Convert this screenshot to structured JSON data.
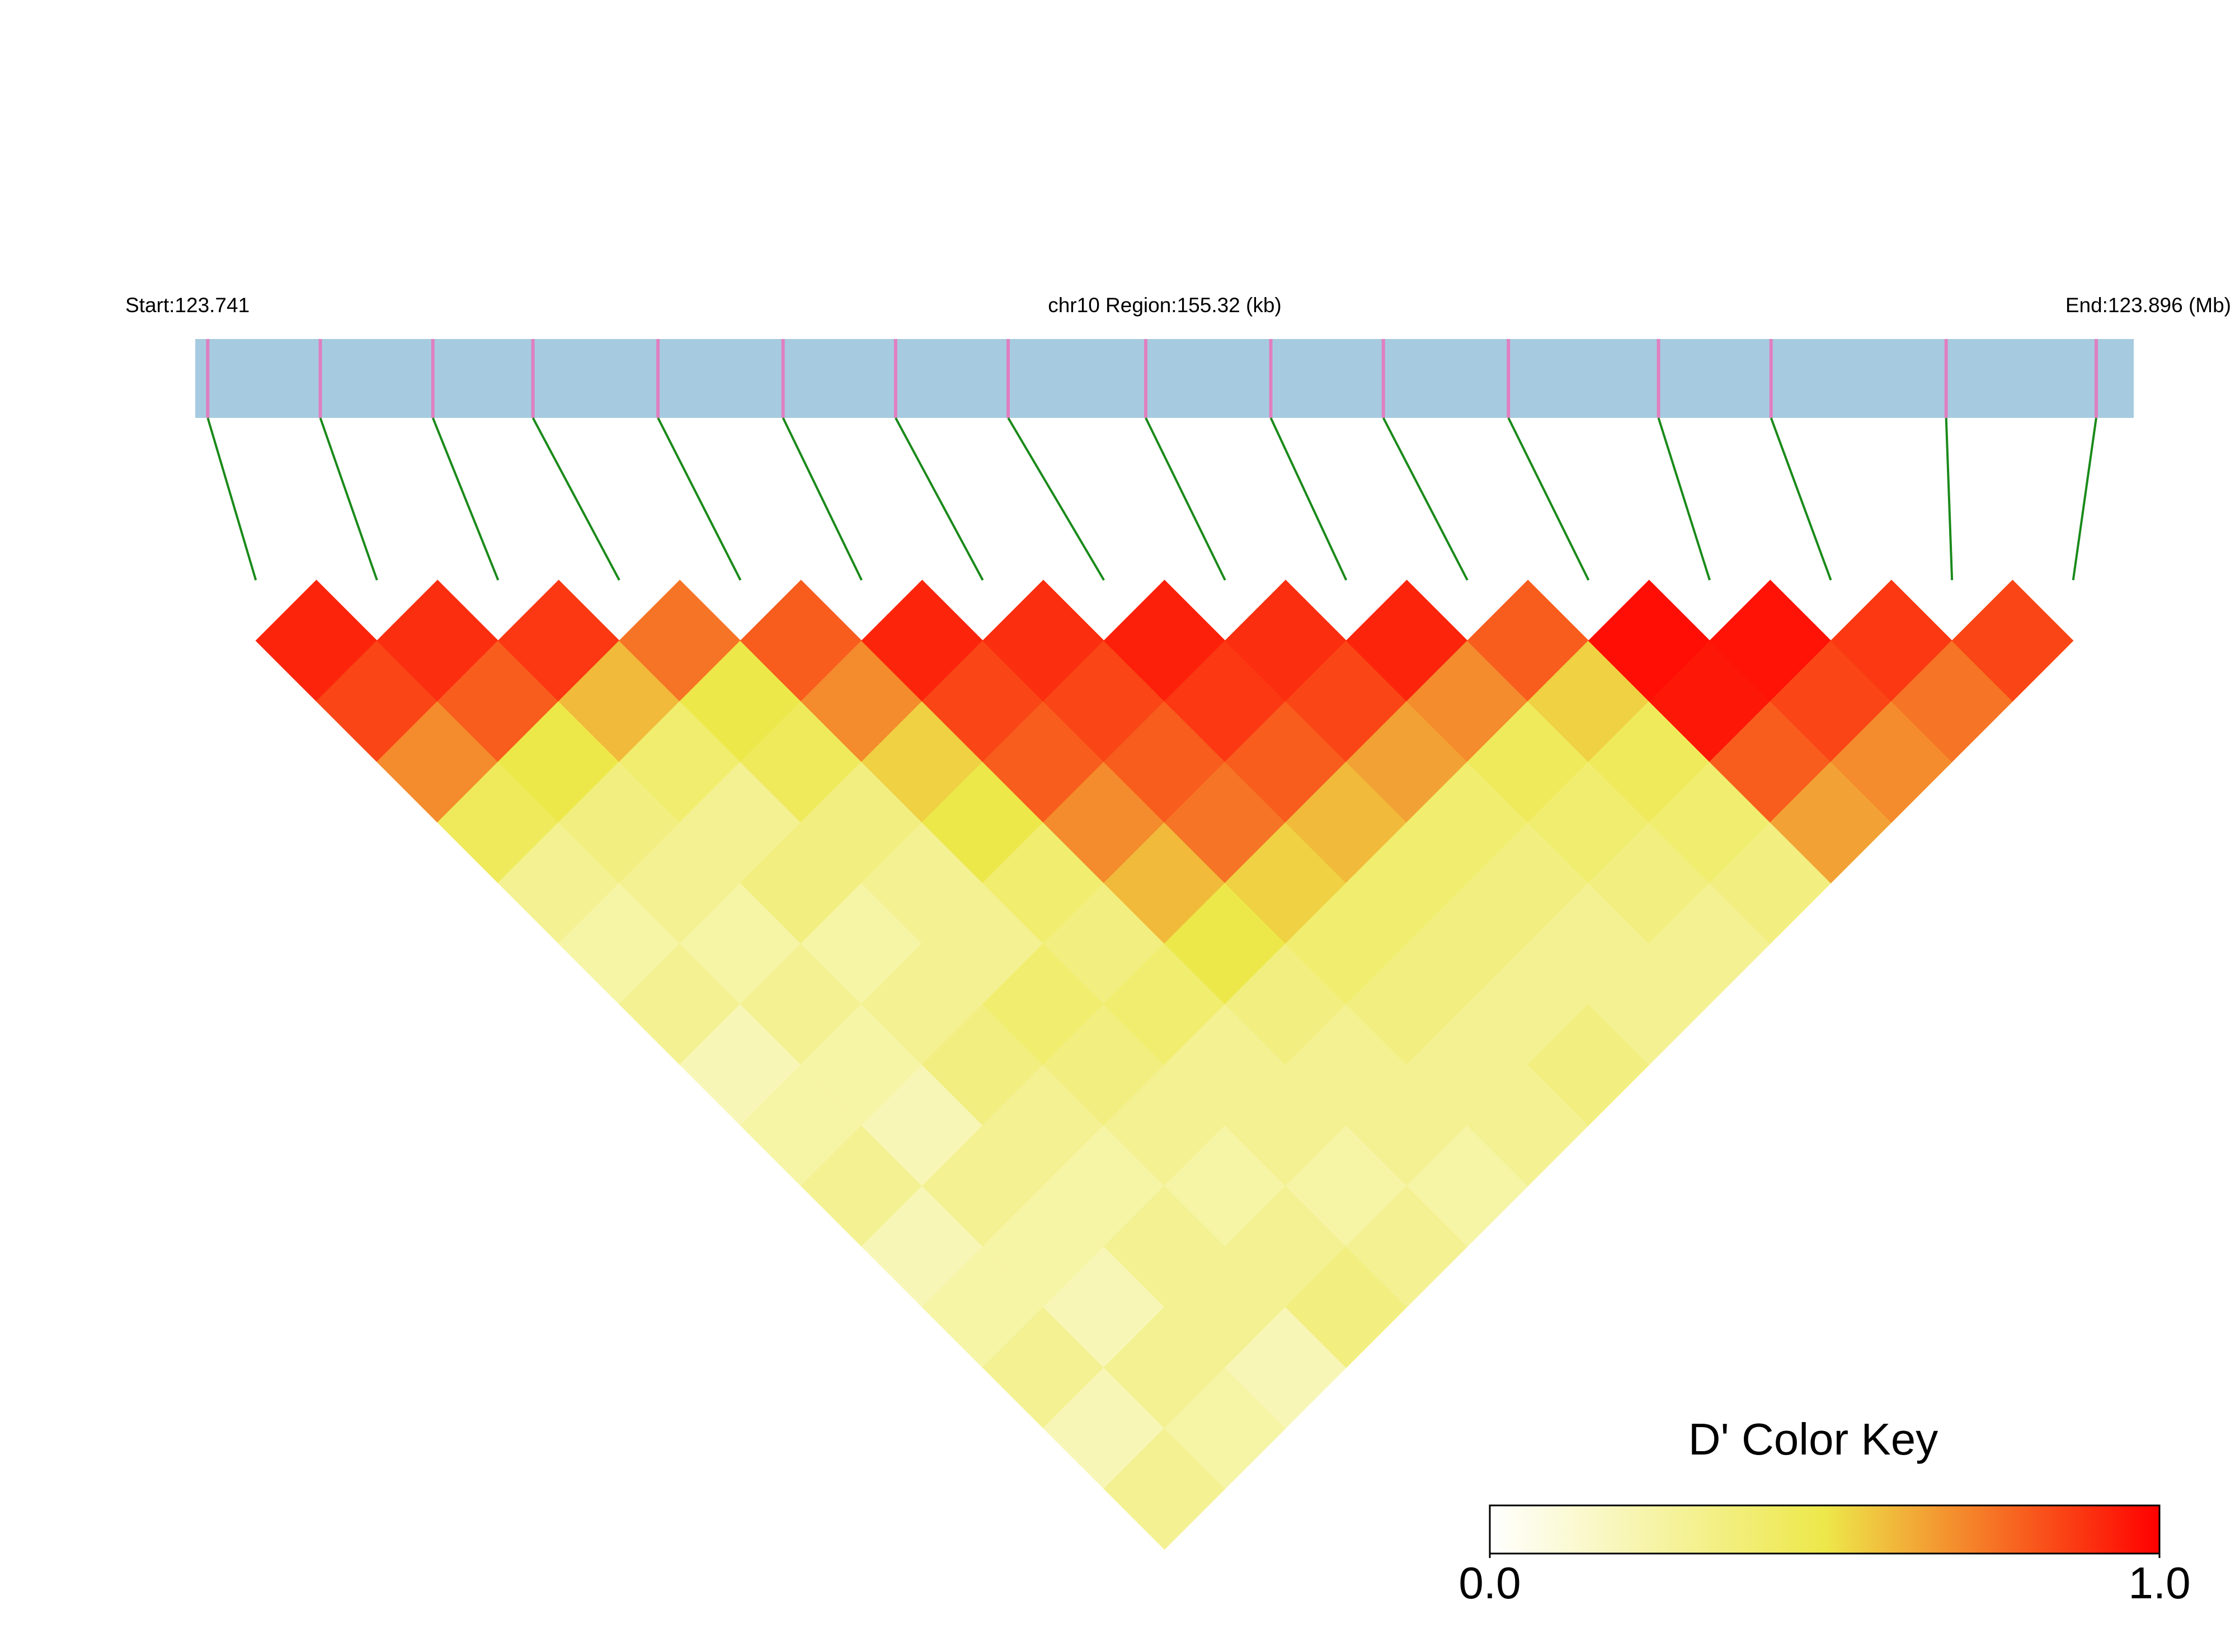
{
  "chart_data": {
    "type": "ld-heatmap",
    "start_label": "Start:123.741",
    "region_label": "chr10 Region:155.32 (kb)",
    "end_label": "End:123.896 (Mb)",
    "xlim": [
      123.741,
      123.896
    ],
    "positions": [
      123.742,
      123.751,
      123.76,
      123.768,
      123.778,
      123.788,
      123.797,
      123.806,
      123.817,
      123.827,
      123.836,
      123.846,
      123.858,
      123.867,
      123.881,
      123.893
    ],
    "bar_color": "#a6cbe0",
    "marker_color": "#e07fc0",
    "line_color": "#1a8a1a",
    "matrix": [
      [
        0.92,
        0.85,
        0.7,
        0.45,
        0.3,
        0.25,
        0.3,
        0.2,
        0.25,
        0.3,
        0.2,
        0.25,
        0.3,
        0.2,
        0.3
      ],
      [
        0.9,
        0.8,
        0.5,
        0.35,
        0.3,
        0.25,
        0.3,
        0.25,
        0.2,
        0.3,
        0.25,
        0.2,
        0.3,
        0.25
      ],
      [
        0.88,
        0.6,
        0.4,
        0.3,
        0.35,
        0.25,
        0.3,
        0.35,
        0.3,
        0.25,
        0.3,
        0.3,
        0.2
      ],
      [
        0.75,
        0.5,
        0.45,
        0.35,
        0.3,
        0.3,
        0.4,
        0.35,
        0.3,
        0.25,
        0.3,
        0.35
      ],
      [
        0.8,
        0.7,
        0.55,
        0.5,
        0.4,
        0.35,
        0.4,
        0.3,
        0.3,
        0.25,
        0.3
      ],
      [
        0.92,
        0.85,
        0.8,
        0.7,
        0.6,
        0.5,
        0.35,
        0.3,
        0.3,
        0.25
      ],
      [
        0.9,
        0.85,
        0.8,
        0.75,
        0.55,
        0.4,
        0.35,
        0.3,
        0.3
      ],
      [
        0.93,
        0.88,
        0.8,
        0.6,
        0.4,
        0.35,
        0.3,
        0.35
      ],
      [
        0.9,
        0.85,
        0.65,
        0.4,
        0.35,
        0.3,
        0.3
      ],
      [
        0.92,
        0.7,
        0.45,
        0.4,
        0.35,
        0.3
      ],
      [
        0.8,
        0.55,
        0.45,
        0.4,
        0.35
      ],
      [
        0.97,
        0.95,
        0.8,
        0.65
      ],
      [
        0.96,
        0.85,
        0.7
      ],
      [
        0.88,
        0.75
      ],
      [
        0.85
      ]
    ],
    "color_key": {
      "title": "D' Color Key",
      "lim": [
        0,
        1
      ],
      "colors": [
        "#ffffff",
        "#ede84a",
        "#ff0000"
      ],
      "ticks": [
        {
          "value": 0,
          "label": "0.0"
        },
        {
          "value": 1,
          "label": "1.0"
        }
      ]
    }
  }
}
